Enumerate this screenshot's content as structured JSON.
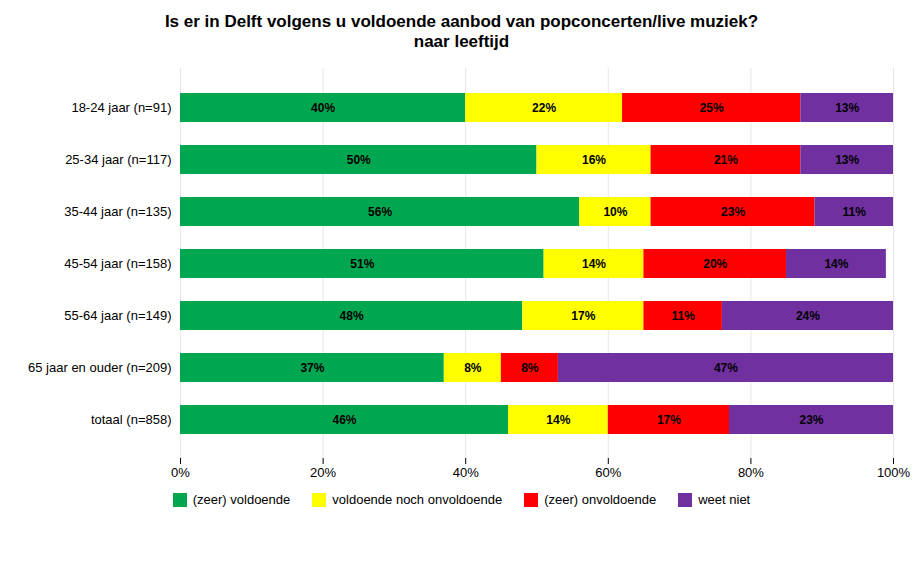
{
  "chart_data": {
    "type": "bar",
    "orientation": "horizontal",
    "stacked": true,
    "title": "Is er in Delft volgens u voldoende aanbod van popconcerten/live muziek?\nnaar leeftijd",
    "categories": [
      "18-24 jaar (n=91)",
      "25-34 jaar (n=117)",
      "35-44 jaar (n=135)",
      "45-54 jaar (n=158)",
      "55-64 jaar (n=149)",
      "65 jaar en ouder (n=209)",
      "totaal (n=858)"
    ],
    "series": [
      {
        "name": "(zeer) voldoende",
        "color": "#00a650",
        "values": [
          40,
          50,
          56,
          51,
          48,
          37,
          46
        ],
        "value_labels": [
          "40%",
          "50%",
          "56%",
          "51%",
          "48%",
          "37%",
          "46%"
        ]
      },
      {
        "name": "voldoende noch onvoldoende",
        "color": "#ffff00",
        "values": [
          22,
          16,
          10,
          14,
          17,
          8,
          14
        ],
        "value_labels": [
          "22%",
          "16%",
          "10%",
          "14%",
          "17%",
          "8%",
          "14%"
        ]
      },
      {
        "name": "(zeer) onvoldoende",
        "color": "#ff0000",
        "values": [
          25,
          21,
          23,
          20,
          11,
          8,
          17
        ],
        "value_labels": [
          "25%",
          "21%",
          "23%",
          "20%",
          "11%",
          "8%",
          "17%"
        ]
      },
      {
        "name": "weet niet",
        "color": "#7030a0",
        "values": [
          13,
          13,
          11,
          14,
          24,
          47,
          23
        ],
        "value_labels": [
          "13%",
          "13%",
          "11%",
          "14%",
          "24%",
          "47%",
          "23%"
        ]
      }
    ],
    "xlim": [
      0,
      100
    ],
    "xticks": [
      {
        "value": 0,
        "label": "0%"
      },
      {
        "value": 20,
        "label": "20%"
      },
      {
        "value": 40,
        "label": "40%"
      },
      {
        "value": 60,
        "label": "60%"
      },
      {
        "value": 80,
        "label": "80%"
      },
      {
        "value": 100,
        "label": "100%"
      }
    ],
    "grid": true,
    "data_labels": true,
    "legend": "bottom"
  }
}
